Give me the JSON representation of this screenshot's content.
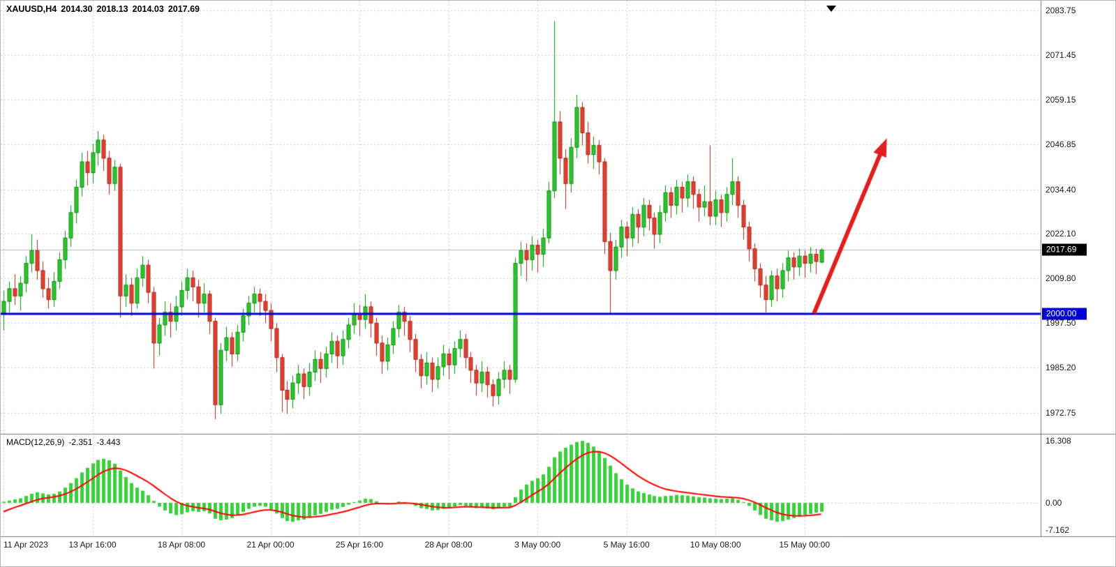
{
  "header": {
    "symbol_period": "XAUUSD,H4",
    "open": "2014.30",
    "high": "2018.13",
    "low": "2014.03",
    "close": "2017.69"
  },
  "price_axis": {
    "labels": [
      {
        "text": "2083.75",
        "value": 2083.75
      },
      {
        "text": "2071.45",
        "value": 2071.45
      },
      {
        "text": "2059.15",
        "value": 2059.15
      },
      {
        "text": "2046.85",
        "value": 2046.85
      },
      {
        "text": "2034.40",
        "value": 2034.4
      },
      {
        "text": "2022.10",
        "value": 2022.1
      },
      {
        "text": "2009.80",
        "value": 2009.8
      },
      {
        "text": "1997.50",
        "value": 1997.5
      },
      {
        "text": "1985.20",
        "value": 1985.2
      },
      {
        "text": "1972.75",
        "value": 1972.75
      }
    ],
    "current_tag": {
      "text": "2017.69",
      "value": 2017.69
    },
    "level_tag": {
      "text": "2000.00",
      "value": 2000.0
    }
  },
  "time_axis": {
    "labels": [
      {
        "text": "11 Apr 2023",
        "bar": 0
      },
      {
        "text": "13 Apr 16:00",
        "bar": 16
      },
      {
        "text": "18 Apr 08:00",
        "bar": 32
      },
      {
        "text": "21 Apr 00:00",
        "bar": 48
      },
      {
        "text": "25 Apr 16:00",
        "bar": 64
      },
      {
        "text": "28 Apr 08:00",
        "bar": 80
      },
      {
        "text": "3 May 00:00",
        "bar": 96
      },
      {
        "text": "5 May 16:00",
        "bar": 112
      },
      {
        "text": "10 May 08:00",
        "bar": 128
      },
      {
        "text": "15 May 00:00",
        "bar": 144
      }
    ]
  },
  "macd_panel": {
    "name": "MACD(12,26,9)",
    "macd_value": "-2.351",
    "signal_value": "-3.443",
    "axis_labels": [
      {
        "text": "16.308",
        "value": 16.308
      },
      {
        "text": "0.00",
        "value": 0
      },
      {
        "text": "-7.162",
        "value": -7.162
      }
    ]
  },
  "colors": {
    "up_fill": "#2FC42F",
    "up_stroke": "#0E8F0E",
    "down_fill": "#E0402F",
    "down_stroke": "#A52A1C",
    "hist": "#3CCE3C",
    "signal": "#FF0000",
    "grid": "#CCCCCC",
    "separator": "#777777",
    "blue_line": "#0000CE",
    "bid_line": "#B8B8B8",
    "tag_black": "#000000",
    "arrow": "#E01F1F",
    "axis_text": "#1a1a1a"
  },
  "chart_data": [
    {
      "type": "candlestick",
      "title": "XAUUSD,H4",
      "timeframe": "H4",
      "ylim": [
        1967,
        2086.4
      ],
      "support_line": 2000.0,
      "bid_line": 2017.69,
      "arrow": {
        "from_bar": 145.7,
        "from_price": 2000.2,
        "to_bar": 158.8,
        "to_price": 2048.5
      },
      "candles": [
        [
          2000.0,
          2006.5,
          1995.5,
          2003.5
        ],
        [
          2003.5,
          2009.0,
          2000.5,
          2007.0
        ],
        [
          2007.0,
          2011.0,
          2002.5,
          2005.0
        ],
        [
          2005.0,
          2010.5,
          2001.0,
          2008.5
        ],
        [
          2008.5,
          2016.0,
          2006.0,
          2014.0
        ],
        [
          2014.0,
          2022.0,
          2011.5,
          2017.5
        ],
        [
          2017.5,
          2020.5,
          2009.5,
          2012.0
        ],
        [
          2012.0,
          2014.5,
          2004.5,
          2007.0
        ],
        [
          2007.0,
          2010.0,
          2001.5,
          2004.0
        ],
        [
          2004.0,
          2011.5,
          2002.0,
          2009.0
        ],
        [
          2009.0,
          2017.0,
          2007.0,
          2015.0
        ],
        [
          2015.0,
          2023.0,
          2012.5,
          2021.0
        ],
        [
          2021.0,
          2030.0,
          2018.5,
          2028.0
        ],
        [
          2028.0,
          2037.0,
          2025.0,
          2035.0
        ],
        [
          2035.0,
          2044.5,
          2032.5,
          2042.0
        ],
        [
          2042.0,
          2045.0,
          2035.5,
          2039.0
        ],
        [
          2039.0,
          2047.0,
          2036.0,
          2044.5
        ],
        [
          2044.5,
          2050.5,
          2041.0,
          2048.0
        ],
        [
          2048.0,
          2049.5,
          2039.5,
          2043.0
        ],
        [
          2043.0,
          2045.0,
          2033.0,
          2036.0
        ],
        [
          2036.0,
          2042.5,
          2034.0,
          2040.5
        ],
        [
          2040.5,
          2041.5,
          1999.0,
          2005.0
        ],
        [
          2005.0,
          2011.0,
          2002.0,
          2008.0
        ],
        [
          2008.0,
          2010.0,
          1999.5,
          2003.0
        ],
        [
          2003.0,
          2012.5,
          2001.5,
          2010.0
        ],
        [
          2010.0,
          2016.0,
          2007.5,
          2013.5
        ],
        [
          2013.5,
          2015.0,
          2003.0,
          2006.0
        ],
        [
          2006.0,
          2007.5,
          1985.0,
          1992.0
        ],
        [
          1992.0,
          1999.0,
          1988.5,
          1997.0
        ],
        [
          1997.0,
          2003.5,
          1994.0,
          2000.5
        ],
        [
          2000.5,
          2003.0,
          1993.5,
          1998.0
        ],
        [
          1998.0,
          2005.0,
          1995.5,
          2002.0
        ],
        [
          2002.0,
          2009.0,
          1999.5,
          2006.5
        ],
        [
          2006.5,
          2012.5,
          2004.0,
          2010.0
        ],
        [
          2010.0,
          2012.0,
          2003.5,
          2007.5
        ],
        [
          2007.5,
          2009.5,
          1999.0,
          2003.0
        ],
        [
          2003.0,
          2008.5,
          2000.5,
          2005.5
        ],
        [
          2005.5,
          2006.5,
          1994.5,
          1998.0
        ],
        [
          1998.0,
          1999.0,
          1971.0,
          1975.0
        ],
        [
          1975.0,
          1992.0,
          1972.5,
          1990.0
        ],
        [
          1990.0,
          1996.5,
          1987.0,
          1993.5
        ],
        [
          1993.5,
          1995.0,
          1985.5,
          1989.0
        ],
        [
          1989.0,
          1997.0,
          1987.0,
          1995.0
        ],
        [
          1995.0,
          2001.5,
          1992.5,
          1999.5
        ],
        [
          1999.5,
          2005.0,
          1997.0,
          2003.0
        ],
        [
          2003.0,
          2007.5,
          2000.5,
          2005.5
        ],
        [
          2005.5,
          2007.0,
          1999.5,
          2003.5
        ],
        [
          2003.5,
          2005.5,
          1997.5,
          2001.0
        ],
        [
          2001.0,
          2003.0,
          1992.5,
          1996.0
        ],
        [
          1996.0,
          1997.5,
          1984.0,
          1988.0
        ],
        [
          1988.0,
          1989.0,
          1973.0,
          1979.0
        ],
        [
          1979.0,
          1981.5,
          1972.5,
          1976.5
        ],
        [
          1976.5,
          1983.0,
          1974.0,
          1981.0
        ],
        [
          1981.0,
          1986.0,
          1978.0,
          1983.5
        ],
        [
          1983.5,
          1985.0,
          1976.5,
          1980.0
        ],
        [
          1980.0,
          1986.5,
          1977.5,
          1984.0
        ],
        [
          1984.0,
          1990.0,
          1981.5,
          1987.5
        ],
        [
          1987.5,
          1989.5,
          1981.0,
          1985.0
        ],
        [
          1985.0,
          1991.0,
          1982.5,
          1989.0
        ],
        [
          1989.0,
          1995.0,
          1986.5,
          1992.5
        ],
        [
          1992.5,
          1994.0,
          1985.0,
          1988.5
        ],
        [
          1988.5,
          1995.5,
          1986.0,
          1993.0
        ],
        [
          1993.0,
          1999.0,
          1990.5,
          1997.0
        ],
        [
          1997.0,
          2003.0,
          1994.5,
          2000.0
        ],
        [
          2000.0,
          2002.5,
          1994.0,
          1998.5
        ],
        [
          1998.5,
          2005.5,
          1996.0,
          2002.0
        ],
        [
          2002.0,
          2003.5,
          1993.5,
          1997.5
        ],
        [
          1997.5,
          1999.0,
          1988.5,
          1992.0
        ],
        [
          1992.0,
          1994.0,
          1983.5,
          1987.0
        ],
        [
          1987.0,
          1993.5,
          1984.5,
          1991.5
        ],
        [
          1991.5,
          1998.0,
          1989.0,
          1996.0
        ],
        [
          1996.0,
          2002.5,
          1993.5,
          2000.5
        ],
        [
          2000.5,
          2002.0,
          1994.0,
          1998.0
        ],
        [
          1998.0,
          1999.5,
          1989.5,
          1993.0
        ],
        [
          1993.0,
          1994.5,
          1984.0,
          1987.5
        ],
        [
          1987.5,
          1989.0,
          1979.5,
          1983.0
        ],
        [
          1983.0,
          1989.5,
          1980.5,
          1986.5
        ],
        [
          1986.5,
          1988.0,
          1978.5,
          1982.0
        ],
        [
          1982.0,
          1988.0,
          1979.5,
          1985.5
        ],
        [
          1985.5,
          1991.5,
          1983.0,
          1989.0
        ],
        [
          1989.0,
          1990.5,
          1982.0,
          1986.0
        ],
        [
          1986.0,
          1992.5,
          1983.5,
          1990.5
        ],
        [
          1990.5,
          1995.5,
          1988.0,
          1993.0
        ],
        [
          1993.0,
          1994.5,
          1985.0,
          1988.0
        ],
        [
          1988.0,
          1989.5,
          1981.0,
          1984.5
        ],
        [
          1984.5,
          1986.0,
          1977.5,
          1981.0
        ],
        [
          1981.0,
          1987.0,
          1978.5,
          1984.0
        ],
        [
          1984.0,
          1985.5,
          1977.0,
          1980.5
        ],
        [
          1980.5,
          1982.0,
          1974.5,
          1977.5
        ],
        [
          1977.5,
          1984.0,
          1975.0,
          1982.0
        ],
        [
          1982.0,
          1987.0,
          1979.5,
          1984.5
        ],
        [
          1984.5,
          1986.0,
          1978.0,
          1982.0
        ],
        [
          1982.0,
          2015.5,
          1981.0,
          2014.0
        ],
        [
          2014.0,
          2020.0,
          2010.5,
          2017.5
        ],
        [
          2017.5,
          2019.5,
          2009.0,
          2015.0
        ],
        [
          2015.0,
          2021.5,
          2012.0,
          2019.0
        ],
        [
          2019.0,
          2020.5,
          2011.5,
          2016.5
        ],
        [
          2016.5,
          2023.5,
          2013.0,
          2021.0
        ],
        [
          2021.0,
          2036.5,
          2019.5,
          2034.0
        ],
        [
          2034.0,
          2080.8,
          2032.0,
          2053.0
        ],
        [
          2053.0,
          2056.0,
          2038.5,
          2043.0
        ],
        [
          2043.0,
          2045.5,
          2029.0,
          2036.0
        ],
        [
          2036.0,
          2048.5,
          2033.5,
          2046.0
        ],
        [
          2046.0,
          2060.5,
          2043.0,
          2057.0
        ],
        [
          2057.0,
          2058.5,
          2046.5,
          2050.0
        ],
        [
          2050.0,
          2053.0,
          2041.5,
          2044.0
        ],
        [
          2044.0,
          2049.0,
          2040.0,
          2046.5
        ],
        [
          2046.5,
          2048.0,
          2038.5,
          2042.0
        ],
        [
          2042.0,
          2043.0,
          2016.5,
          2020.0
        ],
        [
          2020.0,
          2022.5,
          2000.2,
          2012.0
        ],
        [
          2012.0,
          2020.5,
          2009.5,
          2018.5
        ],
        [
          2018.5,
          2026.0,
          2015.5,
          2024.0
        ],
        [
          2024.0,
          2025.5,
          2016.0,
          2021.0
        ],
        [
          2021.0,
          2029.5,
          2018.5,
          2027.5
        ],
        [
          2027.5,
          2029.0,
          2019.5,
          2024.0
        ],
        [
          2024.0,
          2032.0,
          2021.5,
          2030.0
        ],
        [
          2030.0,
          2031.5,
          2023.0,
          2026.5
        ],
        [
          2026.5,
          2028.0,
          2018.0,
          2022.0
        ],
        [
          2022.0,
          2030.0,
          2019.5,
          2028.0
        ],
        [
          2028.0,
          2035.5,
          2025.5,
          2033.5
        ],
        [
          2033.5,
          2035.0,
          2026.5,
          2030.0
        ],
        [
          2030.0,
          2037.0,
          2027.5,
          2035.0
        ],
        [
          2035.0,
          2036.5,
          2028.0,
          2032.0
        ],
        [
          2032.0,
          2038.5,
          2029.5,
          2036.5
        ],
        [
          2036.5,
          2038.0,
          2029.0,
          2033.0
        ],
        [
          2033.0,
          2034.5,
          2025.5,
          2029.5
        ],
        [
          2029.5,
          2035.5,
          2027.0,
          2031.0
        ],
        [
          2031.0,
          2046.5,
          2024.5,
          2027.0
        ],
        [
          2027.0,
          2034.0,
          2024.5,
          2031.5
        ],
        [
          2031.5,
          2033.0,
          2024.0,
          2028.0
        ],
        [
          2028.0,
          2035.0,
          2025.5,
          2033.0
        ],
        [
          2033.0,
          2043.0,
          2030.0,
          2036.5
        ],
        [
          2036.5,
          2038.0,
          2026.5,
          2030.0
        ],
        [
          2030.0,
          2031.5,
          2020.5,
          2024.0
        ],
        [
          2024.0,
          2025.5,
          2014.5,
          2018.0
        ],
        [
          2018.0,
          2019.5,
          2009.0,
          2012.5
        ],
        [
          2012.5,
          2014.0,
          2004.5,
          2008.0
        ],
        [
          2008.0,
          2010.5,
          2000.5,
          2004.0
        ],
        [
          2004.0,
          2012.0,
          2002.0,
          2010.5
        ],
        [
          2010.5,
          2012.5,
          2003.5,
          2007.0
        ],
        [
          2007.0,
          2014.0,
          2004.5,
          2012.0
        ],
        [
          2012.0,
          2017.5,
          2009.0,
          2015.5
        ],
        [
          2015.5,
          2017.0,
          2009.5,
          2013.0
        ],
        [
          2013.0,
          2018.0,
          2010.5,
          2016.0
        ],
        [
          2016.0,
          2017.5,
          2010.0,
          2014.0
        ],
        [
          2014.0,
          2018.5,
          2011.5,
          2016.5
        ],
        [
          2016.5,
          2018.0,
          2011.0,
          2014.5
        ],
        [
          2014.3,
          2018.13,
          2014.03,
          2017.69
        ]
      ]
    },
    {
      "type": "bar",
      "name": "MACD(12,26,9)",
      "last_macd": -2.351,
      "last_signal": -3.443,
      "signal_seed": -3.0,
      "ylim": [
        -8.8,
        17.6
      ],
      "values": [
        0.3,
        0.6,
        0.9,
        1.2,
        1.8,
        2.4,
        2.8,
        2.5,
        2.2,
        2.4,
        3.0,
        4.0,
        5.2,
        6.5,
        8.0,
        9.2,
        10.4,
        11.3,
        11.6,
        11.2,
        10.3,
        8.5,
        6.8,
        5.2,
        4.0,
        3.2,
        2.0,
        0.5,
        -1.0,
        -2.0,
        -2.8,
        -3.2,
        -3.0,
        -2.5,
        -2.2,
        -2.4,
        -2.2,
        -2.8,
        -4.2,
        -4.6,
        -4.4,
        -4.0,
        -3.2,
        -2.4,
        -1.6,
        -1.0,
        -0.8,
        -1.0,
        -1.8,
        -2.8,
        -4.0,
        -4.8,
        -5.0,
        -4.6,
        -4.4,
        -3.9,
        -3.3,
        -2.9,
        -2.4,
        -1.8,
        -1.6,
        -1.1,
        -0.5,
        0.2,
        0.6,
        1.1,
        1.0,
        0.4,
        -0.2,
        -0.4,
        -0.1,
        0.3,
        0.2,
        -0.2,
        -0.8,
        -1.4,
        -1.6,
        -2.0,
        -1.9,
        -1.6,
        -1.4,
        -1.0,
        -0.6,
        -0.8,
        -1.1,
        -1.4,
        -1.2,
        -1.5,
        -1.7,
        -1.3,
        -1.0,
        -1.2,
        1.5,
        3.5,
        4.8,
        5.8,
        6.5,
        7.5,
        9.5,
        12.0,
        13.5,
        14.5,
        15.3,
        16.0,
        16.308,
        15.8,
        14.8,
        13.5,
        11.8,
        9.8,
        7.8,
        6.2,
        4.8,
        3.8,
        3.0,
        2.6,
        2.2,
        1.8,
        1.6,
        1.8,
        1.9,
        2.1,
        2.0,
        1.9,
        1.7,
        1.5,
        1.4,
        1.2,
        1.1,
        1.0,
        1.1,
        1.2,
        0.8,
        0.2,
        -0.8,
        -2.0,
        -3.2,
        -4.2,
        -4.6,
        -5.0,
        -4.8,
        -4.4,
        -4.0,
        -3.6,
        -3.2,
        -2.9,
        -2.6,
        -2.351
      ]
    }
  ]
}
